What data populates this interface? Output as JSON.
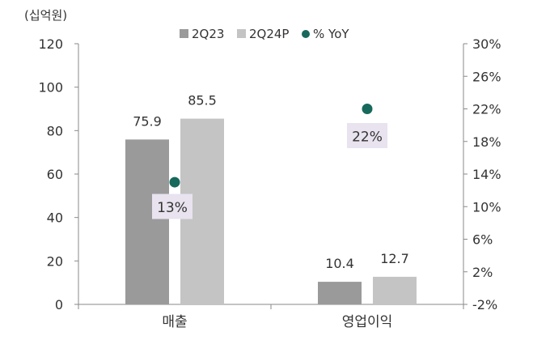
{
  "chart_data": {
    "type": "bar",
    "unit_label": "(십억원)",
    "categories": [
      "매출",
      "영업이익"
    ],
    "series": [
      {
        "name": "2Q23",
        "values": [
          75.9,
          10.4
        ],
        "data_labels": [
          "75.9",
          "10.4"
        ],
        "color": "#9a9a9a"
      },
      {
        "name": "2Q24P",
        "values": [
          85.5,
          12.7
        ],
        "data_labels": [
          "85.5",
          "12.7"
        ],
        "color": "#c4c4c4"
      }
    ],
    "secondary_series": {
      "name": "% YoY",
      "type": "scatter",
      "axis": "right",
      "values": [
        13,
        22
      ],
      "data_labels": [
        "13%",
        "22%"
      ],
      "color": "#17695b",
      "label_bg": "#e8e3ef"
    },
    "y_left": {
      "ylim": [
        0,
        120
      ],
      "ticks": [
        "0",
        "20",
        "40",
        "60",
        "80",
        "100",
        "120"
      ]
    },
    "y_right": {
      "ylim": [
        -2,
        30
      ],
      "ticks": [
        "-2%",
        "2%",
        "6%",
        "10%",
        "14%",
        "18%",
        "22%",
        "26%",
        "30%"
      ]
    },
    "legend_position": "top-center",
    "grid": false
  }
}
